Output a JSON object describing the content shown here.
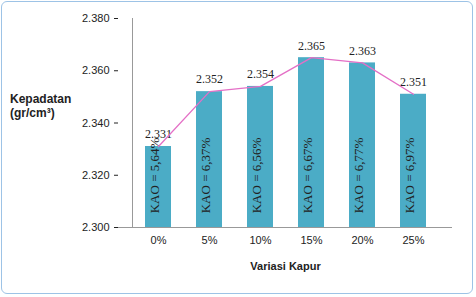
{
  "chart_data": {
    "type": "bar",
    "x_label": "Variasi Kapur",
    "y_label": "Kepadatan (gr/cm³)",
    "categories": [
      "0%",
      "5%",
      "10%",
      "15%",
      "20%",
      "25%"
    ],
    "series": [
      {
        "type": "bar",
        "color": "#4bacc6",
        "values": [
          2.331,
          2.352,
          2.354,
          2.365,
          2.363,
          2.351
        ]
      },
      {
        "type": "line",
        "color": "#e46fc6",
        "values": [
          2.331,
          2.352,
          2.354,
          2.365,
          2.363,
          2.351
        ]
      }
    ],
    "annotations": [
      "KAO = 5,64%",
      "KAO = 6,37%",
      "KAO = 6,56%",
      "KAO = 6,67%",
      "KAO = 6,77%",
      "KAO = 6,97%"
    ],
    "ylim": [
      2.3,
      2.38
    ],
    "yticks": [
      {
        "value": 2.3,
        "label": "2.300"
      },
      {
        "value": 2.32,
        "label": "2.320"
      },
      {
        "value": 2.34,
        "label": "2.340"
      },
      {
        "value": 2.36,
        "label": "2.360"
      },
      {
        "value": 2.38,
        "label": "2.380"
      }
    ],
    "data_labels": true,
    "grid": false
  }
}
